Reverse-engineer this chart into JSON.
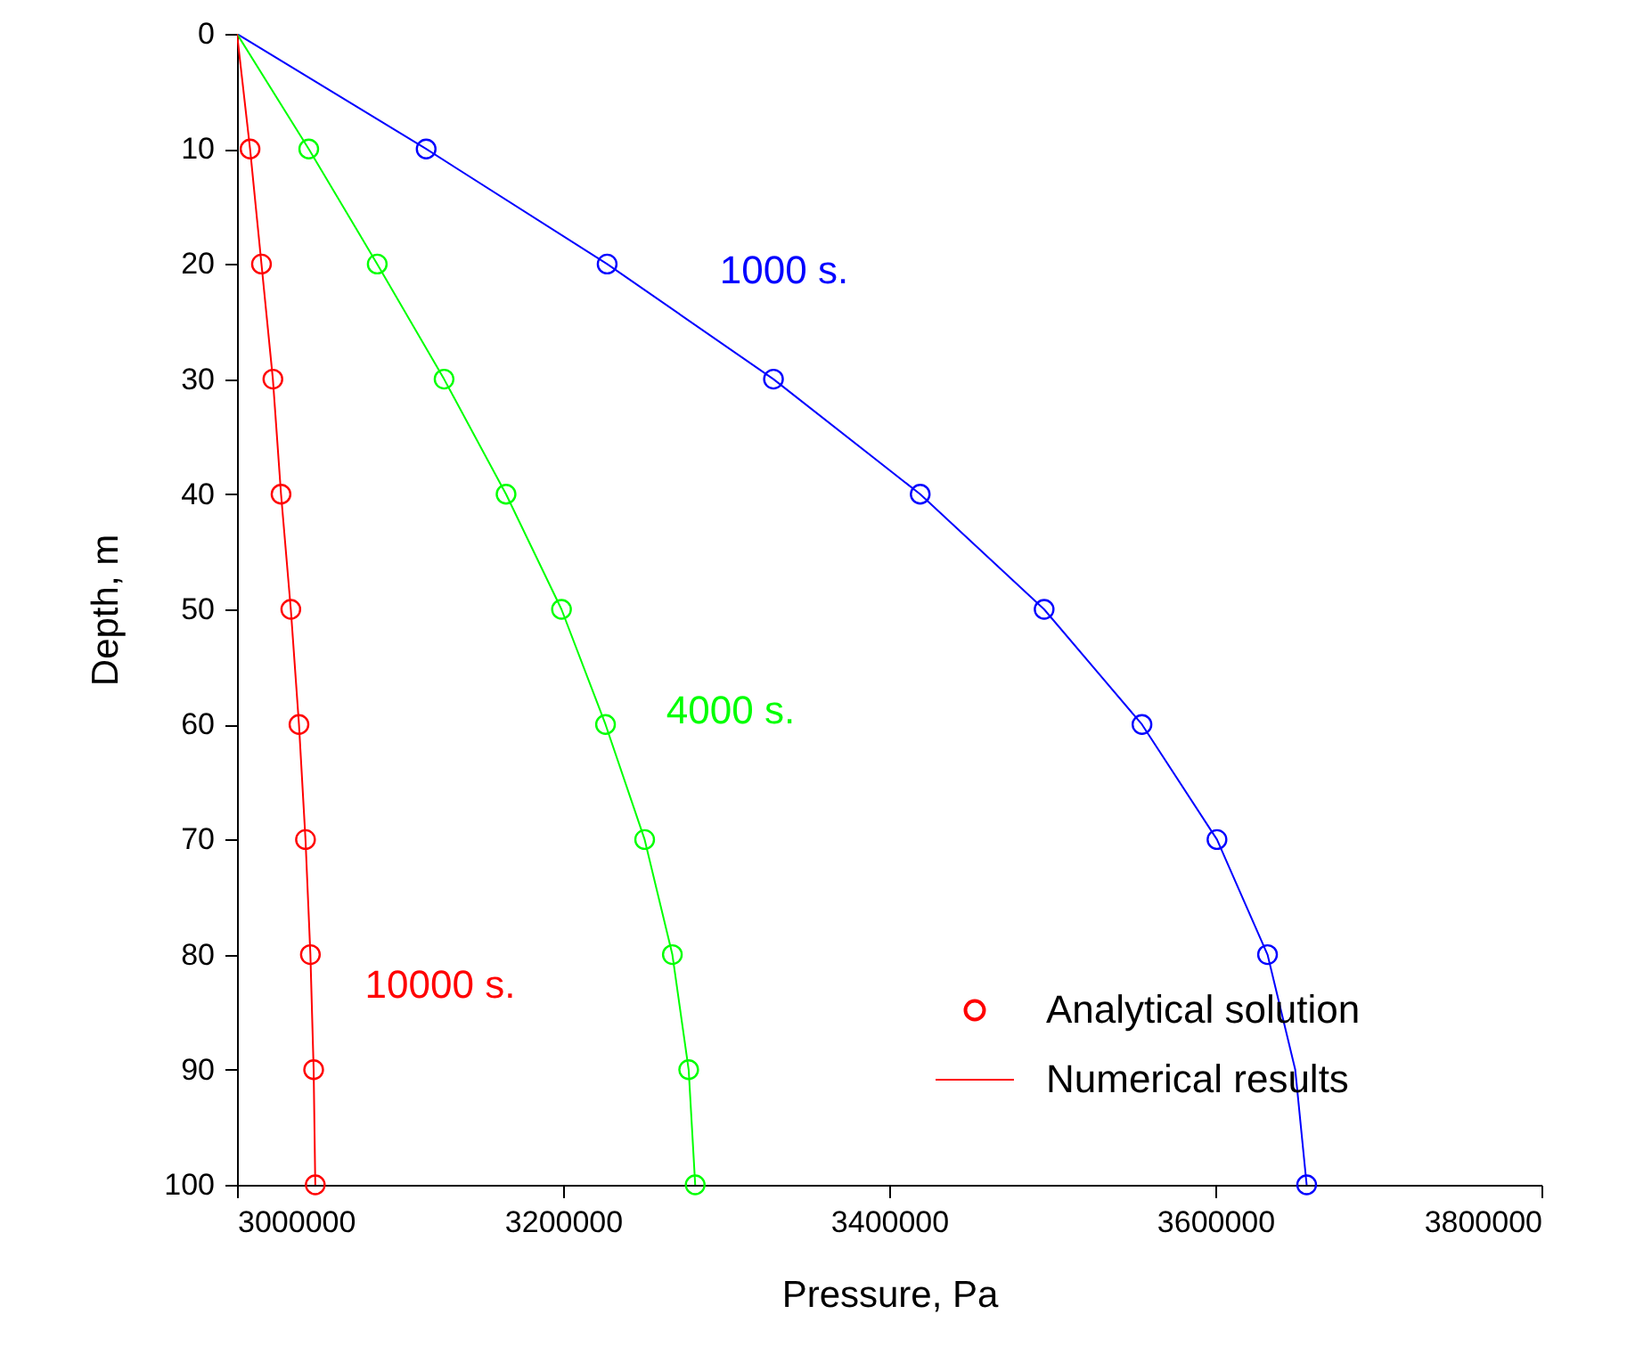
{
  "chart_data": {
    "type": "line",
    "xlabel": "Pressure, Pa",
    "ylabel": "Depth, m",
    "xlim": [
      3000000,
      3800000
    ],
    "ylim": [
      100,
      0
    ],
    "xticks": [
      3000000,
      3200000,
      3400000,
      3600000,
      3800000
    ],
    "yticks": [
      0,
      10,
      20,
      30,
      40,
      50,
      60,
      70,
      80,
      90,
      100
    ],
    "grid": false,
    "legend": "bottom right",
    "series": [
      {
        "color": "#0000ff",
        "x": [
          3000000,
          3116000,
          3227000,
          3329000,
          3419000,
          3495000,
          3555000,
          3601000,
          3632000,
          3649000,
          3656000
        ],
        "values": [
          0,
          10,
          20,
          30,
          40,
          50,
          60,
          70,
          80,
          90,
          100
        ]
      },
      {
        "color": "#00ff00",
        "x": [
          3000000,
          3044000,
          3086000,
          3127000,
          3165000,
          3199000,
          3226000,
          3250000,
          3267000,
          3277000,
          3281000
        ],
        "values": [
          0,
          10,
          20,
          30,
          40,
          50,
          60,
          70,
          80,
          90,
          100
        ]
      },
      {
        "name": "Numerical results",
        "color": "#ff0000",
        "x": [
          3000000,
          3008000,
          3015000,
          3022000,
          3027000,
          3033000,
          3038000,
          3042000,
          3045000,
          3047000,
          3048000
        ],
        "values": [
          0,
          10,
          20,
          30,
          40,
          50,
          60,
          70,
          80,
          90,
          100
        ]
      },
      {
        "type": "scatter",
        "marker": "circle",
        "color": "#0000ff",
        "x": [
          3116000,
          3227000,
          3329000,
          3419000,
          3495000,
          3555000,
          3601000,
          3632000,
          3656000
        ],
        "values": [
          10,
          20,
          30,
          40,
          50,
          60,
          70,
          80,
          100
        ]
      },
      {
        "type": "scatter",
        "marker": "circle",
        "color": "#00ff00",
        "x": [
          3044000,
          3086000,
          3127000,
          3165000,
          3199000,
          3226000,
          3250000,
          3267000,
          3277000,
          3281000
        ],
        "values": [
          10,
          20,
          30,
          40,
          50,
          60,
          70,
          80,
          90,
          100
        ]
      },
      {
        "type": "scatter",
        "marker": "circle",
        "name": "Analytical solution",
        "color": "#ff0000",
        "x": [
          3008000,
          3015000,
          3022000,
          3027000,
          3033000,
          3038000,
          3042000,
          3045000,
          3047000,
          3048000
        ],
        "values": [
          10,
          20,
          30,
          40,
          50,
          60,
          70,
          80,
          90,
          100
        ]
      }
    ],
    "annotations": [
      "1000 s.",
      "4000 s.",
      "10000 s."
    ]
  }
}
